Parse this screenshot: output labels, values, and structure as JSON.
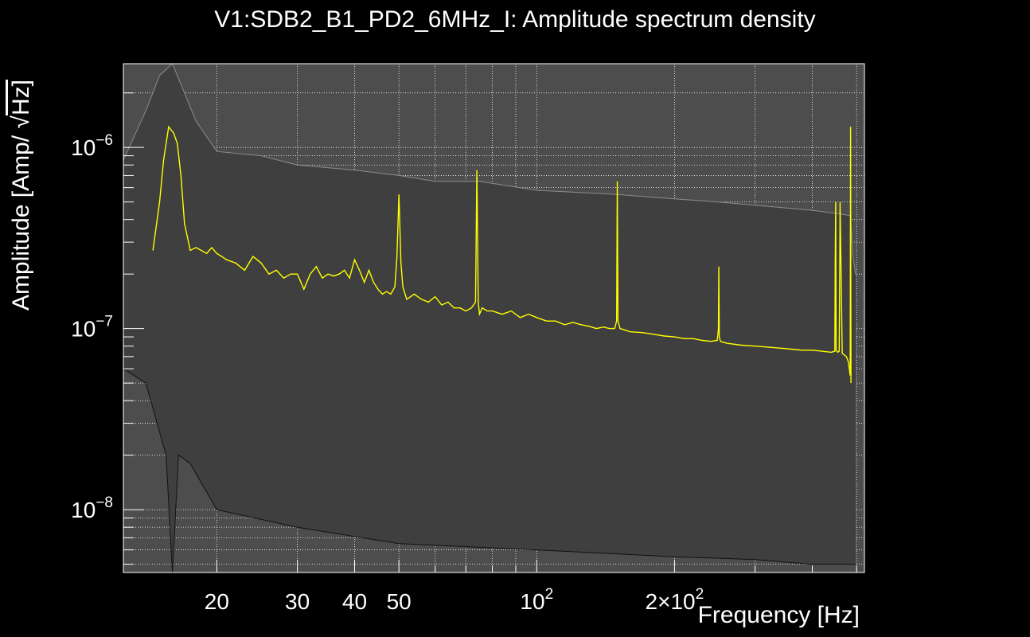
{
  "chart_data": {
    "type": "line",
    "title": "V1:SDB2_B1_PD2_6MHz_I: Amplitude spectrum density",
    "xlabel": "Frequency [Hz]",
    "ylabel_prefix": "Amplitude [Amp/",
    "ylabel_unit": "Hz]",
    "x_scale": "log",
    "y_scale": "log",
    "xlim": [
      12.5,
      520
    ],
    "ylim": [
      4.5e-09,
      2.9e-06
    ],
    "grid": true,
    "x_ticks": [
      {
        "value": 20,
        "label": "20"
      },
      {
        "value": 30,
        "label": "30"
      },
      {
        "value": 40,
        "label": "40"
      },
      {
        "value": 50,
        "label": "50"
      },
      {
        "value": 100,
        "base": "10",
        "exp": "2"
      },
      {
        "value": 200,
        "base": "2×10",
        "exp": "2"
      }
    ],
    "y_ticks": [
      {
        "value": 1e-06,
        "base": "10",
        "exp": "−6"
      },
      {
        "value": 1e-07,
        "base": "10",
        "exp": "−7"
      },
      {
        "value": 1e-08,
        "base": "10",
        "exp": "−8"
      }
    ],
    "colors": {
      "background": "#000000",
      "plot_area": "#4d4d4d",
      "median": "#ffff00",
      "envelope": "#000000",
      "axis": "#ffffff"
    },
    "series": [
      {
        "role": "median",
        "x": [
          14.5,
          15.0,
          15.3,
          15.7,
          16.1,
          16.4,
          16.7,
          17.0,
          17.5,
          18.0,
          18.5,
          19.0,
          19.5,
          20.0,
          20.5,
          21.0,
          22.0,
          23.0,
          24.0,
          25.0,
          26.0,
          27.0,
          28.0,
          29.0,
          30.0,
          31.0,
          32.0,
          33.0,
          34.0,
          35.0,
          36.0,
          37.0,
          38.0,
          39.0,
          40.0,
          41.0,
          42.0,
          43.0,
          44.0,
          45.0,
          46.0,
          47.0,
          48.0,
          49.0,
          49.5,
          50.0,
          50.5,
          51.0,
          52.0,
          54.0,
          56.0,
          58.0,
          60.0,
          62.0,
          64.0,
          66.0,
          68.0,
          70.0,
          72.0,
          73.5,
          74.0,
          74.5,
          75.0,
          76.0,
          78.0,
          80.0,
          84.0,
          88.0,
          92.0,
          96.0,
          100.0,
          105.0,
          110.0,
          115.0,
          120.0,
          125.0,
          130.0,
          135.0,
          140.0,
          144.0,
          148.0,
          149.5,
          150.0,
          150.5,
          152.0,
          156.0,
          160.0,
          170.0,
          180.0,
          190.0,
          200.0,
          210.0,
          220.0,
          230.0,
          240.0,
          248.0,
          249.5,
          250.0,
          250.5,
          252.0,
          260.0,
          280.0,
          300.0,
          320.0,
          340.0,
          360.0,
          380.0,
          400.0,
          420.0,
          440.0,
          448.0,
          449.0,
          450.0,
          451.0,
          455.0,
          458.0,
          459.5,
          460.0,
          465.0,
          475.0,
          480.0,
          484.0,
          485.0,
          486.0
        ],
        "y": [
          2.7e-07,
          5e-07,
          8.5e-07,
          1.3e-06,
          1.2e-06,
          1.05e-06,
          7e-07,
          3.8e-07,
          2.7e-07,
          2.8e-07,
          2.7e-07,
          2.6e-07,
          2.8e-07,
          2.6e-07,
          2.5e-07,
          2.4e-07,
          2.3e-07,
          2.1e-07,
          2.5e-07,
          2.3e-07,
          2e-07,
          2.1e-07,
          1.9e-07,
          2e-07,
          2e-07,
          1.65e-07,
          2e-07,
          2.2e-07,
          1.9e-07,
          2e-07,
          1.95e-07,
          2e-07,
          2.1e-07,
          1.9e-07,
          2.4e-07,
          2.1e-07,
          1.8e-07,
          2.1e-07,
          1.8e-07,
          1.65e-07,
          1.55e-07,
          1.6e-07,
          1.55e-07,
          1.7e-07,
          2.5e-07,
          5.5e-07,
          2.3e-07,
          1.7e-07,
          1.45e-07,
          1.55e-07,
          1.45e-07,
          1.4e-07,
          1.5e-07,
          1.35e-07,
          1.4e-07,
          1.3e-07,
          1.3e-07,
          1.25e-07,
          1.3e-07,
          1.4e-07,
          7.5e-07,
          1.4e-07,
          1.2e-07,
          1.3e-07,
          1.25e-07,
          1.25e-07,
          1.2e-07,
          1.25e-07,
          1.15e-07,
          1.2e-07,
          1.15e-07,
          1.1e-07,
          1.1e-07,
          1.05e-07,
          1.08e-07,
          1.05e-07,
          1.03e-07,
          1e-07,
          1.02e-07,
          1e-07,
          1e-07,
          1.1e-07,
          6.5e-07,
          1.1e-07,
          1e-07,
          9.8e-08,
          9.6e-08,
          9.5e-08,
          9.3e-08,
          9.1e-08,
          9e-08,
          8.8e-08,
          8.8e-08,
          8.6e-08,
          8.5e-08,
          8.6e-08,
          1e-07,
          2.2e-07,
          9e-08,
          8.5e-08,
          8.3e-08,
          8.1e-08,
          8e-08,
          7.9e-08,
          7.8e-08,
          7.7e-08,
          7.6e-08,
          7.6e-08,
          7.5e-08,
          7.4e-08,
          7.5e-08,
          2.3e-07,
          5e-07,
          7.6e-08,
          7.4e-08,
          7.5e-08,
          2.5e-07,
          5e-07,
          7.3e-08,
          7e-08,
          6.5e-08,
          5.5e-08,
          1.3e-06,
          5e-08
        ]
      },
      {
        "role": "envelope_upper",
        "x": [
          12.5,
          14.0,
          15.0,
          16.0,
          17.0,
          18.0,
          20.0,
          25.0,
          30.0,
          40.0,
          50.0,
          60.0,
          75.0,
          100.0,
          150.0,
          200.0,
          250.0,
          300.0,
          400.0,
          460.0,
          485.0,
          490.0,
          497.0
        ],
        "y": [
          8.5e-07,
          1.6e-06,
          2.5e-06,
          2.9e-06,
          2e-06,
          1.4e-06,
          9.5e-07,
          9e-07,
          8e-07,
          7.5e-07,
          7e-07,
          6.5e-07,
          6.5e-07,
          5.8e-07,
          5.5e-07,
          5.2e-07,
          5e-07,
          4.8e-07,
          4.5e-07,
          4.3e-07,
          4.2e-07,
          2.6e-07,
          2e-07
        ]
      },
      {
        "role": "envelope_lower",
        "x": [
          12.5,
          14.0,
          15.5,
          16.0,
          16.5,
          17.5,
          20.0,
          30.0,
          50.0,
          100.0,
          200.0,
          300.0,
          400.0,
          480.0,
          497.0
        ],
        "y": [
          6e-08,
          5e-08,
          2e-08,
          4.5e-09,
          2e-08,
          1.8e-08,
          1e-08,
          8e-09,
          6.5e-09,
          6e-09,
          5.5e-09,
          5.3e-09,
          5e-09,
          5e-09,
          5e-09
        ]
      }
    ]
  }
}
